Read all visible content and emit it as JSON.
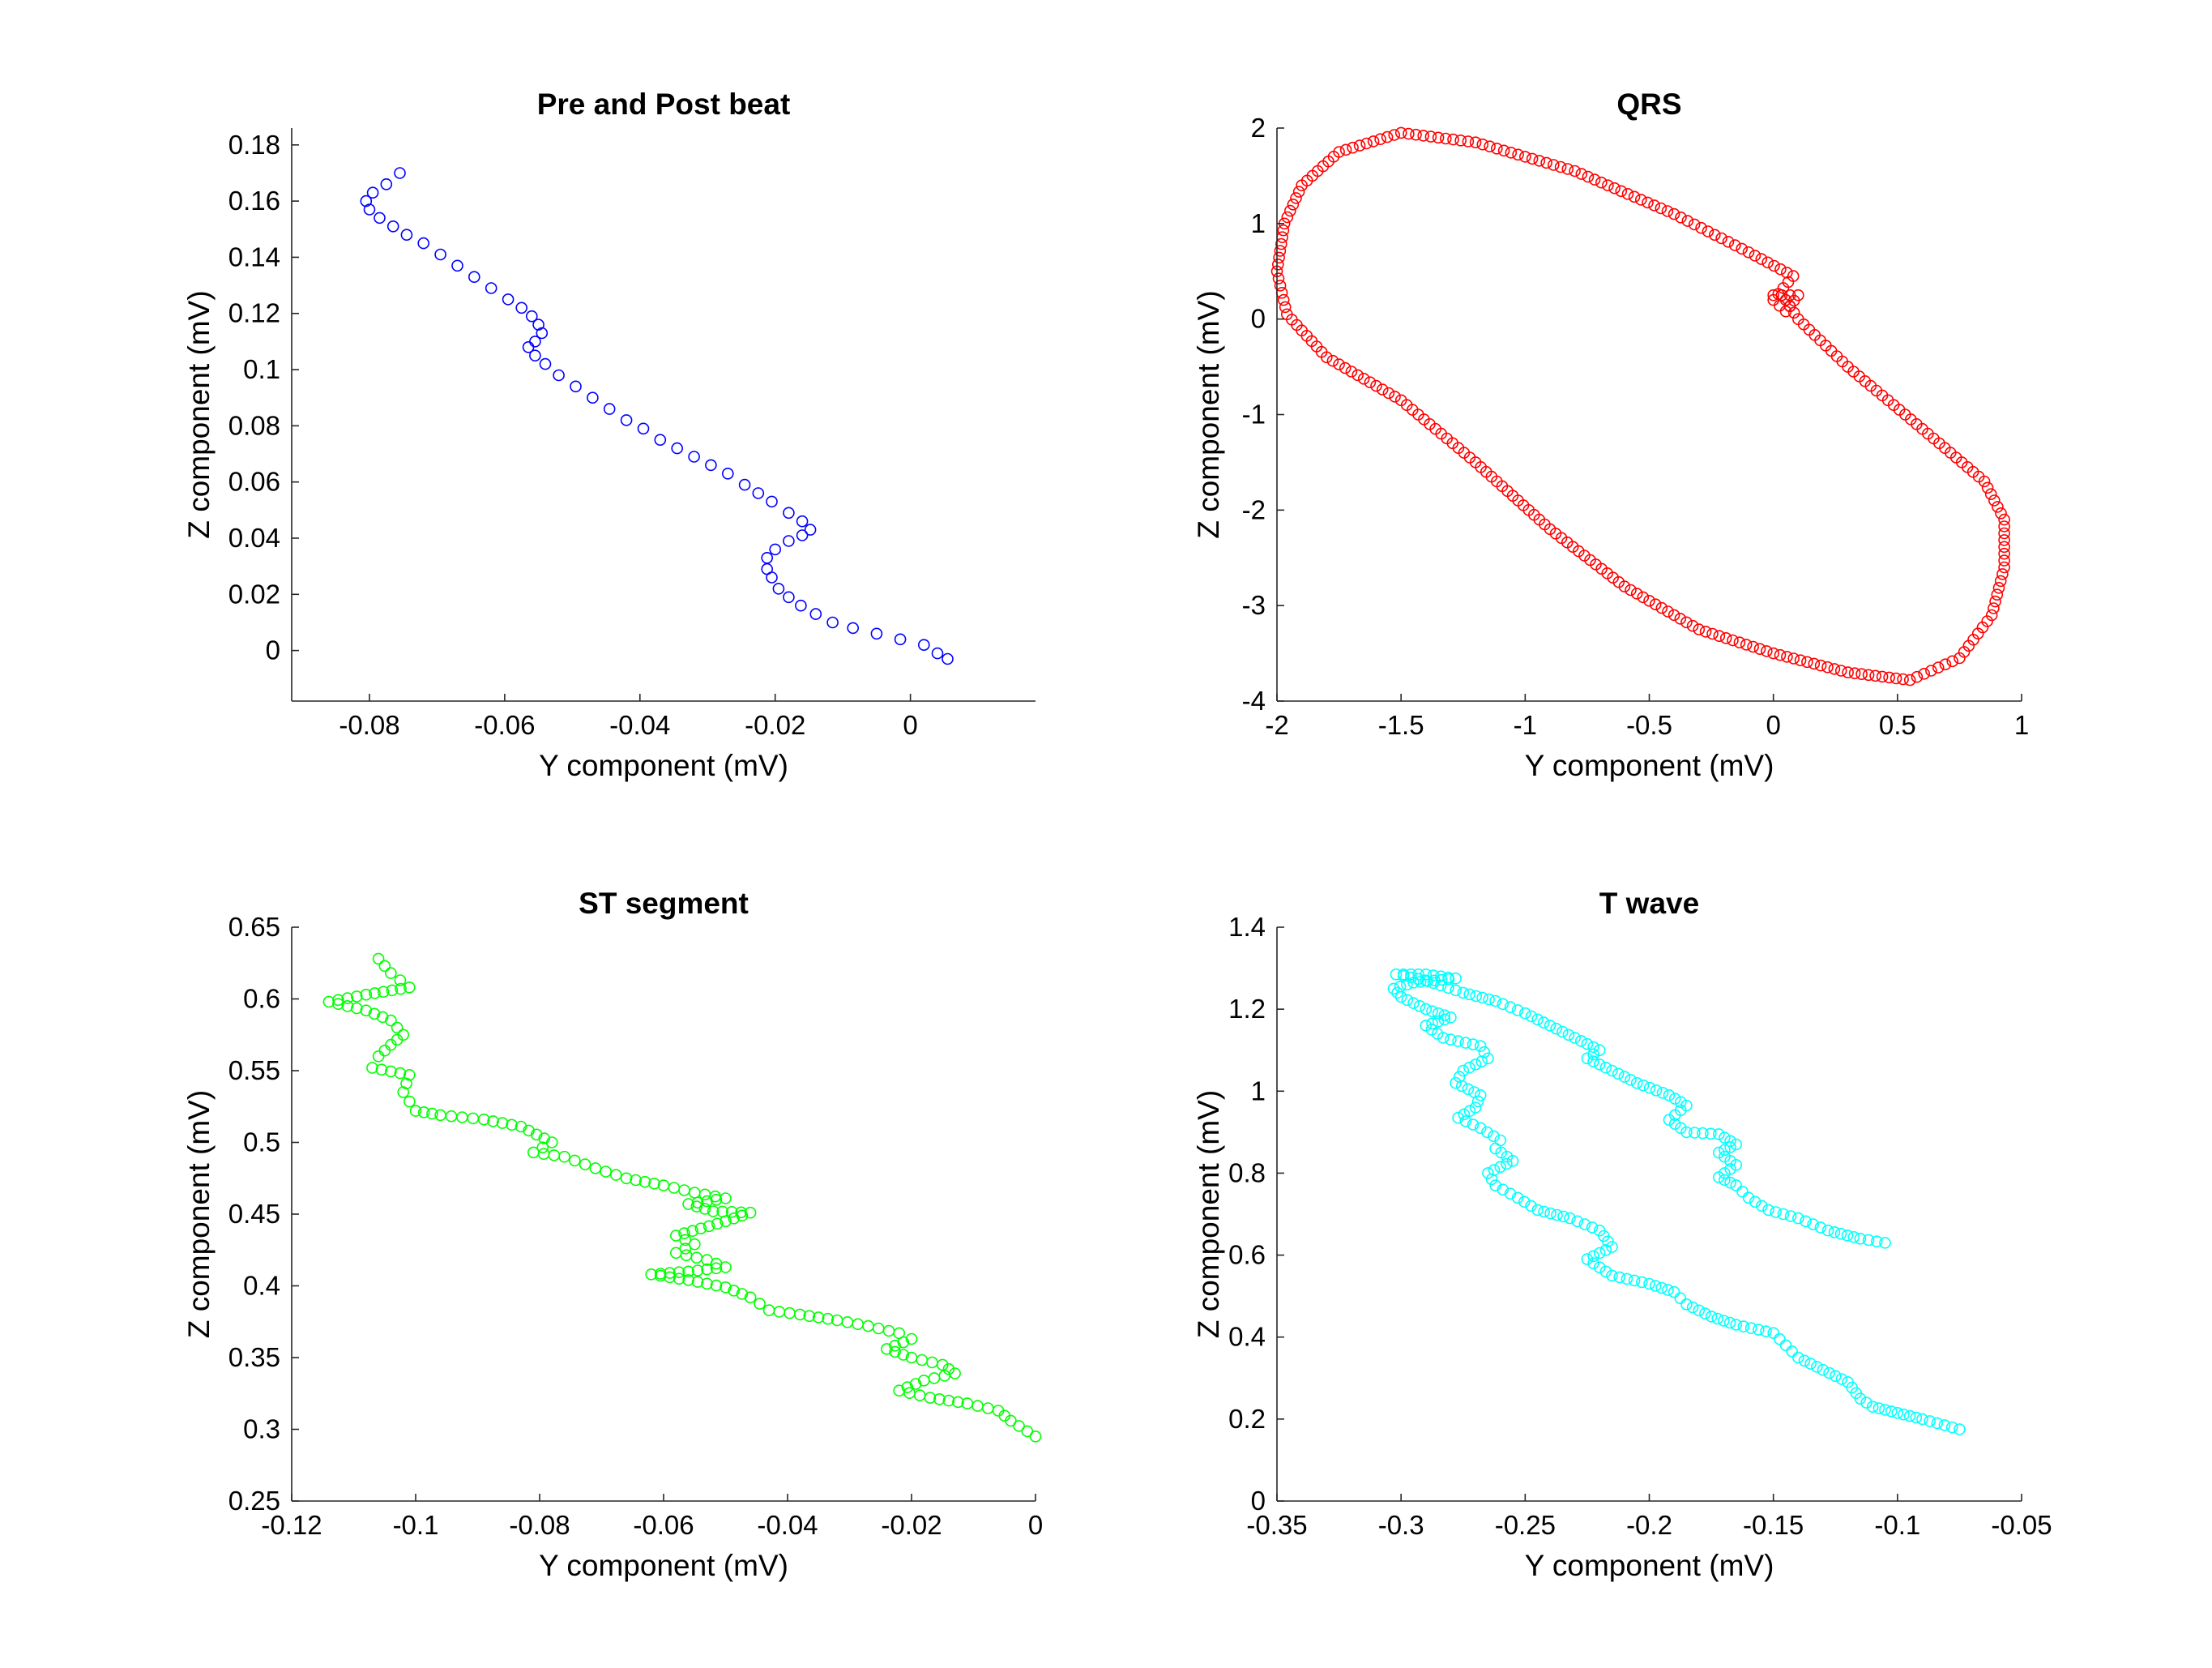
{
  "figure": {
    "background": "#ffffff",
    "axis_color": "#262626"
  },
  "chart_data": [
    {
      "type": "scatter",
      "title": "Pre and Post beat",
      "xlabel": "Y component (mV)",
      "ylabel": "Z component (mV)",
      "xlim": [
        -0.0915,
        0.0185
      ],
      "ylim": [
        -0.018,
        0.186
      ],
      "xticks": [
        -0.08,
        -0.06,
        -0.04,
        -0.02,
        0
      ],
      "xtick_labels": [
        "-0.08",
        "-0.06",
        "-0.04",
        "-0.02",
        "0"
      ],
      "yticks": [
        0,
        0.02,
        0.04,
        0.06,
        0.08,
        0.1,
        0.12,
        0.14,
        0.16,
        0.18
      ],
      "ytick_labels": [
        "0",
        "0.02",
        "0.04",
        "0.06",
        "0.08",
        "0.1",
        "0.12",
        "0.14",
        "0.16",
        "0.18"
      ],
      "grid": false,
      "color": "#0000ff",
      "marker": "open-circle",
      "path": [
        [
          -0.0755,
          0.17
        ],
        [
          -0.0775,
          0.166
        ],
        [
          -0.0795,
          0.163
        ],
        [
          -0.0805,
          0.16
        ],
        [
          -0.08,
          0.157
        ],
        [
          -0.0785,
          0.154
        ],
        [
          -0.0765,
          0.151
        ],
        [
          -0.0745,
          0.148
        ],
        [
          -0.072,
          0.145
        ],
        [
          -0.0695,
          0.141
        ],
        [
          -0.067,
          0.137
        ],
        [
          -0.0645,
          0.133
        ],
        [
          -0.062,
          0.129
        ],
        [
          -0.0595,
          0.125
        ],
        [
          -0.0575,
          0.122
        ],
        [
          -0.056,
          0.119
        ],
        [
          -0.055,
          0.116
        ],
        [
          -0.0545,
          0.113
        ],
        [
          -0.0555,
          0.11
        ],
        [
          -0.0565,
          0.108
        ],
        [
          -0.0555,
          0.105
        ],
        [
          -0.054,
          0.102
        ],
        [
          -0.052,
          0.098
        ],
        [
          -0.0495,
          0.094
        ],
        [
          -0.047,
          0.09
        ],
        [
          -0.0445,
          0.086
        ],
        [
          -0.042,
          0.082
        ],
        [
          -0.0395,
          0.079
        ],
        [
          -0.037,
          0.075
        ],
        [
          -0.0345,
          0.072
        ],
        [
          -0.032,
          0.069
        ],
        [
          -0.0295,
          0.066
        ],
        [
          -0.027,
          0.063
        ],
        [
          -0.0245,
          0.059
        ],
        [
          -0.0225,
          0.056
        ],
        [
          -0.0205,
          0.053
        ],
        [
          -0.018,
          0.049
        ],
        [
          -0.016,
          0.046
        ],
        [
          -0.0148,
          0.043
        ],
        [
          -0.016,
          0.041
        ],
        [
          -0.018,
          0.039
        ],
        [
          -0.02,
          0.036
        ],
        [
          -0.0212,
          0.033
        ],
        [
          -0.0212,
          0.029
        ],
        [
          -0.0205,
          0.026
        ],
        [
          -0.0195,
          0.022
        ],
        [
          -0.018,
          0.019
        ],
        [
          -0.0162,
          0.016
        ],
        [
          -0.014,
          0.013
        ],
        [
          -0.0115,
          0.01
        ],
        [
          -0.0085,
          0.008
        ],
        [
          -0.005,
          0.006
        ],
        [
          -0.0015,
          0.004
        ],
        [
          0.002,
          0.002
        ],
        [
          0.004,
          -0.001
        ],
        [
          0.0055,
          -0.003
        ]
      ]
    },
    {
      "type": "scatter",
      "title": "QRS",
      "xlabel": "Y component (mV)",
      "ylabel": "Z component (mV)",
      "xlim": [
        -2,
        1
      ],
      "ylim": [
        -4,
        2
      ],
      "xticks": [
        -2,
        -1.5,
        -1,
        -0.5,
        0,
        0.5,
        1
      ],
      "xtick_labels": [
        "-2",
        "-1.5",
        "-1",
        "-0.5",
        "0",
        "0.5",
        "1"
      ],
      "yticks": [
        -4,
        -3,
        -2,
        -1,
        0,
        1,
        2
      ],
      "ytick_labels": [
        "-4",
        "-3",
        "-2",
        "-1",
        "0",
        "1",
        "2"
      ],
      "grid": false,
      "color": "#ff0000",
      "marker": "open-circle",
      "path": [
        [
          0.0,
          0.25
        ],
        [
          0.1,
          0.25
        ],
        [
          0.05,
          0.08
        ],
        [
          0.0,
          0.2
        ],
        [
          0.08,
          0.45
        ],
        [
          -0.1,
          0.7
        ],
        [
          -0.4,
          1.1
        ],
        [
          -0.8,
          1.55
        ],
        [
          -1.2,
          1.85
        ],
        [
          -1.5,
          1.95
        ],
        [
          -1.75,
          1.75
        ],
        [
          -1.9,
          1.4
        ],
        [
          -1.97,
          1.0
        ],
        [
          -2.0,
          0.5
        ],
        [
          -1.96,
          0.05
        ],
        [
          -1.8,
          -0.4
        ],
        [
          -1.5,
          -0.85
        ],
        [
          -1.2,
          -1.5
        ],
        [
          -0.9,
          -2.2
        ],
        [
          -0.6,
          -2.8
        ],
        [
          -0.3,
          -3.25
        ],
        [
          0.0,
          -3.5
        ],
        [
          0.3,
          -3.7
        ],
        [
          0.55,
          -3.78
        ],
        [
          0.75,
          -3.55
        ],
        [
          0.88,
          -3.1
        ],
        [
          0.93,
          -2.6
        ],
        [
          0.93,
          -2.1
        ],
        [
          0.85,
          -1.7
        ],
        [
          0.6,
          -1.15
        ],
        [
          0.3,
          -0.5
        ],
        [
          0.1,
          0.0
        ],
        [
          0.05,
          0.2
        ]
      ]
    },
    {
      "type": "scatter",
      "title": "ST segment",
      "xlabel": "Y component (mV)",
      "ylabel": "Z component (mV)",
      "xlim": [
        -0.12,
        0
      ],
      "ylim": [
        0.25,
        0.65
      ],
      "xticks": [
        -0.12,
        -0.1,
        -0.08,
        -0.06,
        -0.04,
        -0.02,
        0
      ],
      "xtick_labels": [
        "-0.12",
        "-0.1",
        "-0.08",
        "-0.06",
        "-0.04",
        "-0.02",
        "0"
      ],
      "yticks": [
        0.25,
        0.3,
        0.35,
        0.4,
        0.45,
        0.5,
        0.55,
        0.6,
        0.65
      ],
      "ytick_labels": [
        "0.25",
        "0.3",
        "0.35",
        "0.4",
        "0.45",
        "0.5",
        "0.55",
        "0.6",
        "0.65"
      ],
      "grid": false,
      "color": "#00ff00",
      "marker": "open-circle",
      "path": [
        [
          -0.106,
          0.628
        ],
        [
          -0.104,
          0.618
        ],
        [
          -0.101,
          0.608
        ],
        [
          -0.108,
          0.603
        ],
        [
          -0.114,
          0.598
        ],
        [
          -0.108,
          0.592
        ],
        [
          -0.104,
          0.585
        ],
        [
          -0.102,
          0.575
        ],
        [
          -0.104,
          0.568
        ],
        [
          -0.106,
          0.56
        ],
        [
          -0.107,
          0.552
        ],
        [
          -0.101,
          0.547
        ],
        [
          -0.102,
          0.535
        ],
        [
          -0.1,
          0.522
        ],
        [
          -0.096,
          0.519
        ],
        [
          -0.089,
          0.516
        ],
        [
          -0.083,
          0.511
        ],
        [
          -0.078,
          0.5
        ],
        [
          -0.081,
          0.493
        ],
        [
          -0.076,
          0.49
        ],
        [
          -0.071,
          0.482
        ],
        [
          -0.066,
          0.475
        ],
        [
          -0.06,
          0.47
        ],
        [
          -0.055,
          0.465
        ],
        [
          -0.05,
          0.461
        ],
        [
          -0.056,
          0.457
        ],
        [
          -0.052,
          0.452
        ],
        [
          -0.046,
          0.451
        ],
        [
          -0.05,
          0.445
        ],
        [
          -0.054,
          0.44
        ],
        [
          -0.058,
          0.435
        ],
        [
          -0.055,
          0.429
        ],
        [
          -0.058,
          0.423
        ],
        [
          -0.053,
          0.418
        ],
        [
          -0.05,
          0.413
        ],
        [
          -0.056,
          0.41
        ],
        [
          -0.062,
          0.408
        ],
        [
          -0.056,
          0.404
        ],
        [
          -0.05,
          0.399
        ],
        [
          -0.046,
          0.392
        ],
        [
          -0.043,
          0.383
        ],
        [
          -0.038,
          0.38
        ],
        [
          -0.032,
          0.376
        ],
        [
          -0.027,
          0.372
        ],
        [
          -0.022,
          0.367
        ],
        [
          -0.02,
          0.363
        ],
        [
          -0.024,
          0.356
        ],
        [
          -0.02,
          0.35
        ],
        [
          -0.015,
          0.345
        ],
        [
          -0.013,
          0.339
        ],
        [
          -0.018,
          0.334
        ],
        [
          -0.022,
          0.327
        ],
        [
          -0.017,
          0.322
        ],
        [
          -0.011,
          0.318
        ],
        [
          -0.006,
          0.313
        ],
        [
          -0.004,
          0.306
        ],
        [
          0.0,
          0.295
        ]
      ]
    },
    {
      "type": "scatter",
      "title": "T wave",
      "xlabel": "Y component (mV)",
      "ylabel": "Z component (mV)",
      "xlim": [
        -0.35,
        -0.05
      ],
      "ylim": [
        0,
        1.4
      ],
      "xticks": [
        -0.35,
        -0.3,
        -0.25,
        -0.2,
        -0.15,
        -0.1,
        -0.05
      ],
      "xtick_labels": [
        "-0.35",
        "-0.3",
        "-0.25",
        "-0.2",
        "-0.15",
        "-0.1",
        "-0.05"
      ],
      "yticks": [
        0,
        0.2,
        0.4,
        0.6,
        0.8,
        1,
        1.2,
        1.4
      ],
      "ytick_labels": [
        "0",
        "0.2",
        "0.4",
        "0.6",
        "0.8",
        "1",
        "1.2",
        "1.4"
      ],
      "grid": false,
      "color": "#00ffff",
      "marker": "open-circle",
      "path": [
        [
          -0.105,
          0.63
        ],
        [
          -0.115,
          0.64
        ],
        [
          -0.128,
          0.66
        ],
        [
          -0.14,
          0.69
        ],
        [
          -0.152,
          0.71
        ],
        [
          -0.16,
          0.74
        ],
        [
          -0.165,
          0.77
        ],
        [
          -0.172,
          0.79
        ],
        [
          -0.165,
          0.82
        ],
        [
          -0.172,
          0.85
        ],
        [
          -0.165,
          0.87
        ],
        [
          -0.172,
          0.895
        ],
        [
          -0.185,
          0.9
        ],
        [
          -0.192,
          0.93
        ],
        [
          -0.185,
          0.965
        ],
        [
          -0.192,
          0.99
        ],
        [
          -0.205,
          1.02
        ],
        [
          -0.215,
          1.05
        ],
        [
          -0.225,
          1.08
        ],
        [
          -0.22,
          1.1
        ],
        [
          -0.23,
          1.13
        ],
        [
          -0.24,
          1.16
        ],
        [
          -0.25,
          1.19
        ],
        [
          -0.262,
          1.22
        ],
        [
          -0.275,
          1.24
        ],
        [
          -0.29,
          1.27
        ],
        [
          -0.302,
          1.285
        ],
        [
          -0.29,
          1.285
        ],
        [
          -0.278,
          1.275
        ],
        [
          -0.295,
          1.265
        ],
        [
          -0.303,
          1.25
        ],
        [
          -0.3,
          1.23
        ],
        [
          -0.29,
          1.2
        ],
        [
          -0.28,
          1.18
        ],
        [
          -0.29,
          1.16
        ],
        [
          -0.283,
          1.13
        ],
        [
          -0.268,
          1.11
        ],
        [
          -0.265,
          1.08
        ],
        [
          -0.275,
          1.05
        ],
        [
          -0.278,
          1.02
        ],
        [
          -0.268,
          0.99
        ],
        [
          -0.27,
          0.96
        ],
        [
          -0.277,
          0.935
        ],
        [
          -0.268,
          0.91
        ],
        [
          -0.26,
          0.88
        ],
        [
          -0.262,
          0.86
        ],
        [
          -0.255,
          0.83
        ],
        [
          -0.265,
          0.8
        ],
        [
          -0.262,
          0.77
        ],
        [
          -0.253,
          0.74
        ],
        [
          -0.245,
          0.71
        ],
        [
          -0.232,
          0.69
        ],
        [
          -0.22,
          0.66
        ],
        [
          -0.215,
          0.62
        ],
        [
          -0.225,
          0.59
        ],
        [
          -0.215,
          0.55
        ],
        [
          -0.2,
          0.53
        ],
        [
          -0.19,
          0.51
        ],
        [
          -0.185,
          0.48
        ],
        [
          -0.175,
          0.45
        ],
        [
          -0.165,
          0.43
        ],
        [
          -0.15,
          0.41
        ],
        [
          -0.145,
          0.38
        ],
        [
          -0.14,
          0.35
        ],
        [
          -0.13,
          0.32
        ],
        [
          -0.12,
          0.29
        ],
        [
          -0.115,
          0.25
        ],
        [
          -0.11,
          0.23
        ],
        [
          -0.1,
          0.215
        ],
        [
          -0.09,
          0.2
        ],
        [
          -0.075,
          0.175
        ]
      ]
    }
  ]
}
